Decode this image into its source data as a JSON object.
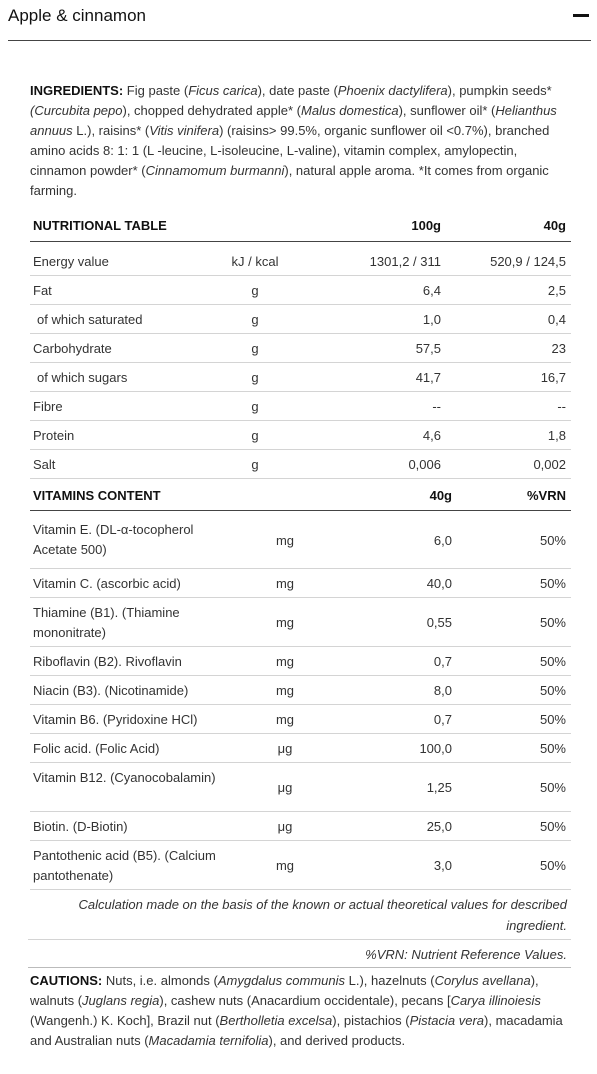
{
  "header": {
    "title": "Apple & cinnamon"
  },
  "ingredients": {
    "label": "INGREDIENTS:",
    "parts": [
      {
        "t": " Fig paste (",
        "i": false
      },
      {
        "t": "Ficus carica",
        "i": true
      },
      {
        "t": "), date paste (",
        "i": false
      },
      {
        "t": "Phoenix dactylifera",
        "i": true
      },
      {
        "t": "), pumpkin seeds* ",
        "i": false
      },
      {
        "t": "(Curcubita pepo",
        "i": true
      },
      {
        "t": "), chopped dehydrated apple* (",
        "i": false
      },
      {
        "t": "Malus domestica",
        "i": true
      },
      {
        "t": "), sunflower oil* (",
        "i": false
      },
      {
        "t": "Helianthus annuus",
        "i": true
      },
      {
        "t": " L.), raisins* (",
        "i": false
      },
      {
        "t": "Vitis vinifera",
        "i": true
      },
      {
        "t": ") (raisins> 99.5%, organic sunflower oil <0.7%), branched amino acids 8: 1: 1 (L -leucine, L-isoleucine, L-valine), vitamin complex, amylopectin, cinnamon powder* (",
        "i": false
      },
      {
        "t": "Cinnamomum burmanni",
        "i": true
      },
      {
        "t": "), natural apple aroma. *It comes from organic farming.",
        "i": false
      }
    ]
  },
  "nutrition": {
    "header": {
      "title": "NUTRITIONAL TABLE",
      "col_100g": "100g",
      "col_40g": "40g"
    },
    "rows": [
      {
        "name": "Energy value",
        "unit": "kJ / kcal",
        "v100": "1301,2 / 311",
        "v40": "520,9 / 124,5"
      },
      {
        "name": "Fat",
        "unit": "g",
        "v100": "6,4",
        "v40": "2,5"
      },
      {
        "name": "of which saturated",
        "unit": "g",
        "v100": "1,0",
        "v40": "0,4"
      },
      {
        "name": "Carbohydrate",
        "unit": "g",
        "v100": "57,5",
        "v40": "23"
      },
      {
        "name": "of which sugars",
        "unit": "g",
        "v100": "41,7",
        "v40": "16,7"
      },
      {
        "name": "Fibre",
        "unit": "g",
        "v100": "--",
        "v40": "--"
      },
      {
        "name": "Protein",
        "unit": "g",
        "v100": "4,6",
        "v40": "1,8"
      },
      {
        "name": "Salt",
        "unit": "g",
        "v100": "0,006",
        "v40": "0,002"
      }
    ]
  },
  "vitamins": {
    "header": {
      "title": "VITAMINS CONTENT",
      "col_40g": "40g",
      "col_vrn": "%VRN"
    },
    "rows": [
      {
        "name": "Vitamin E. (DL-α-tocopherol Acetate 500)",
        "unit": "mg",
        "value": "6,0",
        "vrn": "50%"
      },
      {
        "name": "Vitamin C. (ascorbic acid)",
        "unit": "mg",
        "value": "40,0",
        "vrn": "50%"
      },
      {
        "name": "Thiamine (B1). (Thiamine mononitrate)",
        "unit": "mg",
        "value": "0,55",
        "vrn": "50%"
      },
      {
        "name": "Riboflavin (B2). Rivoflavin",
        "unit": "mg",
        "value": "0,7",
        "vrn": "50%"
      },
      {
        "name": "Niacin (B3). (Nicotinamide)",
        "unit": "mg",
        "value": "8,0",
        "vrn": "50%"
      },
      {
        "name": "Vitamin B6. (Pyridoxine HCl)",
        "unit": "mg",
        "value": "0,7",
        "vrn": "50%"
      },
      {
        "name": "Folic acid. (Folic Acid)",
        "unit": "μg",
        "value": "100,0",
        "vrn": "50%"
      },
      {
        "name": "Vitamin B12. (Cyanocobalamin)",
        "unit": "μg",
        "value": "1,25",
        "vrn": "50%"
      },
      {
        "name": "Biotin. (D-Biotin)",
        "unit": "μg",
        "value": "25,0",
        "vrn": "50%"
      },
      {
        "name": "Pantothenic acid (B5). (Calcium pantothenate)",
        "unit": "mg",
        "value": "3,0",
        "vrn": "50%"
      }
    ]
  },
  "notes": {
    "calculation": "Calculation made on the basis of the known or actual theoretical values for described ingredient.",
    "vrn": "%VRN: Nutrient Reference Values."
  },
  "cautions": {
    "label": "CAUTIONS:",
    "parts": [
      {
        "t": " Nuts, i.e. almonds (",
        "i": false
      },
      {
        "t": "Amygdalus communis",
        "i": true
      },
      {
        "t": " L.), hazelnuts (",
        "i": false
      },
      {
        "t": "Corylus avellana",
        "i": true
      },
      {
        "t": "), walnuts (",
        "i": false
      },
      {
        "t": "Juglans regia",
        "i": true
      },
      {
        "t": "), cashew nuts (Anacardium occidentale), pecans [",
        "i": false
      },
      {
        "t": "Carya illinoiesis",
        "i": true
      },
      {
        "t": " (Wangenh.) K. Koch], Brazil nut (",
        "i": false
      },
      {
        "t": "Bertholletia excelsa",
        "i": true
      },
      {
        "t": "), pistachios (",
        "i": false
      },
      {
        "t": "Pistacia vera",
        "i": true
      },
      {
        "t": "), macadamia and Australian nuts (",
        "i": false
      },
      {
        "t": "Macadamia ternifolia",
        "i": true
      },
      {
        "t": "), and derived products.",
        "i": false
      }
    ]
  }
}
